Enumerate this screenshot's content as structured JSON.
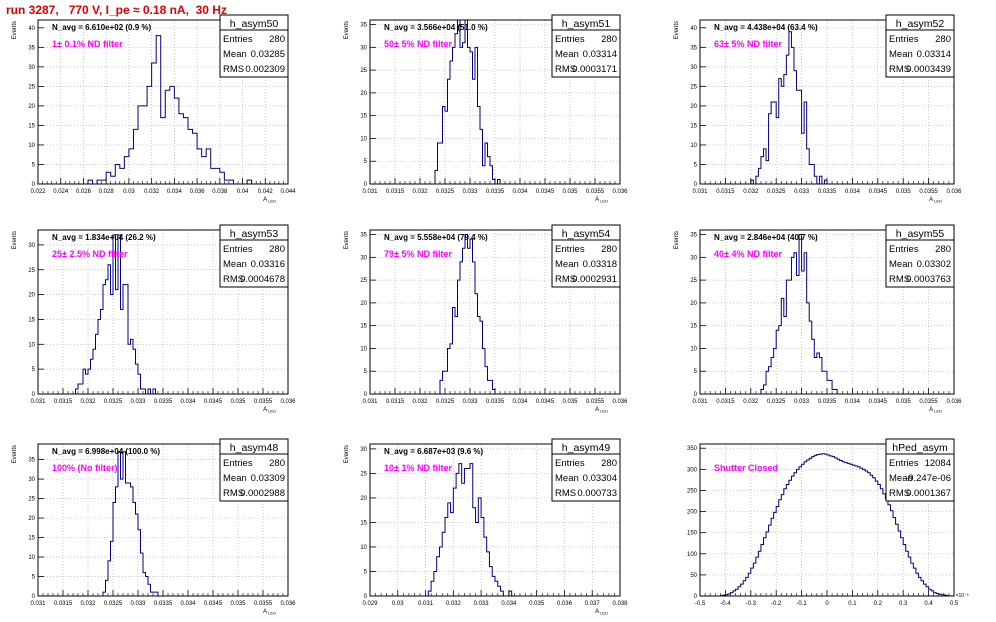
{
  "canvas_title": "run 3287,   770 V, I_pe ≈ 0.18 nA,  30 Hz",
  "colors": {
    "histogram": "#000080",
    "grid": "#b4b4b4",
    "filter_label": "#ff00ff",
    "title": "#e00000",
    "frame": "#000000"
  },
  "chart_data": [
    {
      "type": "bar",
      "name": "h_asym50",
      "nlabel": "N_avg = 6.610e+02 (0.9 %)",
      "filter": "1± 0.1% ND filter",
      "stats": [
        [
          "Entries",
          "280"
        ],
        [
          "Mean",
          "0.03285"
        ],
        [
          "RMS",
          "0.002309"
        ]
      ],
      "xlim": [
        0.022,
        0.044
      ],
      "ylim": [
        0,
        42
      ],
      "xticks": [
        "0.022",
        "0.024",
        "0.026",
        "0.028",
        "0.03",
        "0.032",
        "0.034",
        "0.036",
        "0.038",
        "0.04",
        "0.042",
        "0.044"
      ],
      "xtick_values": [
        0.022,
        0.024,
        0.026,
        0.028,
        0.03,
        0.032,
        0.034,
        0.036,
        0.038,
        0.04,
        0.042,
        0.044
      ],
      "yticks": [
        0,
        5,
        10,
        15,
        20,
        25,
        30,
        35,
        40
      ],
      "ylabel": "Events",
      "xlabel": "A_LED",
      "bins": {
        "x0": 0.0264,
        "width": 0.0004,
        "values": [
          1,
          0,
          1,
          1,
          3,
          2,
          5,
          4,
          7,
          9,
          14,
          20,
          20,
          25,
          31,
          38,
          17,
          24,
          25,
          22,
          18,
          17,
          14,
          13,
          9,
          7,
          9,
          4,
          4,
          3,
          1,
          1,
          0,
          0,
          0,
          1
        ]
      }
    },
    {
      "type": "bar",
      "name": "h_asym51",
      "nlabel": "N_avg = 3.566e+04 (51.0 %)",
      "filter": "50± 5% ND filter",
      "stats": [
        [
          "Entries",
          "280"
        ],
        [
          "Mean",
          "0.03314"
        ],
        [
          "RMS",
          "0.0003171"
        ]
      ],
      "xlim": [
        0.031,
        0.036
      ],
      "ylim": [
        0,
        36
      ],
      "xticks": [
        "0.031",
        "0.0315",
        "0.032",
        "0.0325",
        "0.033",
        "0.0335",
        "0.034",
        "0.0345",
        "0.035",
        "0.0355",
        "0.036"
      ],
      "xtick_values": [
        0.031,
        0.0315,
        0.032,
        0.0325,
        0.033,
        0.0335,
        0.034,
        0.0345,
        0.035,
        0.0355,
        0.036
      ],
      "yticks": [
        0,
        5,
        10,
        15,
        20,
        25,
        30,
        35
      ],
      "ylabel": "Events",
      "xlabel": "A_LED",
      "bins": {
        "x0": 0.0323,
        "width": 5e-05,
        "values": [
          3,
          9,
          9,
          17,
          16,
          23,
          27,
          30,
          33,
          36,
          30,
          31,
          36,
          30,
          29,
          23,
          30,
          17,
          12,
          4,
          9,
          6,
          4,
          1,
          0,
          1
        ]
      }
    },
    {
      "type": "bar",
      "name": "h_asym52",
      "nlabel": "N_avg = 4.438e+04 (63.4 %)",
      "filter": "63± 5% ND filter",
      "stats": [
        [
          "Entries",
          "280"
        ],
        [
          "Mean",
          "0.03314"
        ],
        [
          "RMS",
          "0.0003439"
        ]
      ],
      "xlim": [
        0.031,
        0.036
      ],
      "ylim": [
        0,
        42
      ],
      "xticks": [
        "0.031",
        "0.0315",
        "0.032",
        "0.0325",
        "0.033",
        "0.0335",
        "0.034",
        "0.0345",
        "0.035",
        "0.0355",
        "0.036"
      ],
      "xtick_values": [
        0.031,
        0.0315,
        0.032,
        0.0325,
        0.033,
        0.0335,
        0.034,
        0.0345,
        0.035,
        0.0355,
        0.036
      ],
      "yticks": [
        0,
        5,
        10,
        15,
        20,
        25,
        30,
        35,
        40
      ],
      "ylabel": "Events",
      "xlabel": "A_LED",
      "bins": {
        "x0": 0.032,
        "width": 5e-05,
        "values": [
          1,
          0,
          2,
          4,
          7,
          9,
          6,
          18,
          21,
          21,
          17,
          27,
          25,
          28,
          33,
          39,
          35,
          29,
          24,
          24,
          13,
          21,
          9,
          5,
          5,
          2,
          0,
          2,
          0,
          1
        ]
      }
    },
    {
      "type": "bar",
      "name": "h_asym53",
      "nlabel": "N_avg = 1.834e+04 (26.2 %)",
      "filter": "25± 2.5% ND filter",
      "stats": [
        [
          "Entries",
          "280"
        ],
        [
          "Mean",
          "0.03316"
        ],
        [
          "RMS",
          "0.0004678"
        ]
      ],
      "xlim": [
        0.031,
        0.036
      ],
      "ylim": [
        0,
        33
      ],
      "xticks": [
        "0.031",
        "0.0315",
        "0.032",
        "0.0325",
        "0.033",
        "0.0335",
        "0.034",
        "0.0345",
        "0.035",
        "0.0355",
        "0.036"
      ],
      "xtick_values": [
        0.031,
        0.0315,
        0.032,
        0.0325,
        0.033,
        0.0335,
        0.034,
        0.0345,
        0.035,
        0.0355,
        0.036
      ],
      "yticks": [
        0,
        5,
        10,
        15,
        20,
        25,
        30
      ],
      "ylabel": "Events",
      "xlabel": "A_LED",
      "bins": {
        "x0": 0.03175,
        "width": 5e-05,
        "values": [
          1,
          2,
          2,
          5,
          4,
          5,
          7,
          9,
          12,
          15,
          17,
          22,
          23,
          26,
          20,
          32,
          21,
          32,
          17,
          22,
          22,
          10,
          11,
          9,
          6,
          4,
          1,
          1,
          0,
          1,
          0,
          1
        ]
      }
    },
    {
      "type": "bar",
      "name": "h_asym54",
      "nlabel": "N_avg = 5.558e+04 (79.4 %)",
      "filter": "79± 5% ND filter",
      "stats": [
        [
          "Entries",
          "280"
        ],
        [
          "Mean",
          "0.03318"
        ],
        [
          "RMS",
          "0.0002931"
        ]
      ],
      "xlim": [
        0.031,
        0.036
      ],
      "ylim": [
        0,
        36
      ],
      "xticks": [
        "0.031",
        "0.0315",
        "0.032",
        "0.0325",
        "0.033",
        "0.0335",
        "0.034",
        "0.0345",
        "0.035",
        "0.0355",
        "0.036"
      ],
      "xtick_values": [
        0.031,
        0.0315,
        0.032,
        0.0325,
        0.033,
        0.0335,
        0.034,
        0.0345,
        0.035,
        0.0355,
        0.036
      ],
      "yticks": [
        0,
        5,
        10,
        15,
        20,
        25,
        30,
        35
      ],
      "ylabel": "Events",
      "xlabel": "A_LED",
      "bins": {
        "x0": 0.0324,
        "width": 5e-05,
        "values": [
          3,
          5,
          5,
          10,
          11,
          19,
          17,
          25,
          29,
          32,
          35,
          32,
          34,
          29,
          22,
          17,
          16,
          10,
          6,
          3,
          3,
          1
        ]
      }
    },
    {
      "type": "bar",
      "name": "h_asym55",
      "nlabel": "N_avg = 2.846e+04 (40.7 %)",
      "filter": "40± 4% ND filter",
      "stats": [
        [
          "Entries",
          "280"
        ],
        [
          "Mean",
          "0.03302"
        ],
        [
          "RMS",
          "0.0003763"
        ]
      ],
      "xlim": [
        0.031,
        0.036
      ],
      "ylim": [
        0,
        36
      ],
      "xticks": [
        "0.031",
        "0.0315",
        "0.032",
        "0.0325",
        "0.033",
        "0.0335",
        "0.034",
        "0.0345",
        "0.035",
        "0.0355",
        "0.036"
      ],
      "xtick_values": [
        0.031,
        0.0315,
        0.032,
        0.0325,
        0.033,
        0.0335,
        0.034,
        0.0345,
        0.035,
        0.0355,
        0.036
      ],
      "yticks": [
        0,
        5,
        10,
        15,
        20,
        25,
        30,
        35
      ],
      "ylabel": "Events",
      "xlabel": "A_LED",
      "bins": {
        "x0": 0.0322,
        "width": 5e-05,
        "values": [
          1,
          2,
          5,
          6,
          8,
          10,
          14,
          15,
          21,
          17,
          25,
          25,
          30,
          31,
          26,
          35,
          27,
          31,
          20,
          16,
          12,
          8,
          9,
          8,
          5,
          5,
          3,
          3,
          1,
          1
        ]
      }
    },
    {
      "type": "bar",
      "name": "h_asym48",
      "nlabel": "N_avg = 6.998e+04 (100.0 %)",
      "filter": "100% (No filter)",
      "stats": [
        [
          "Entries",
          "280"
        ],
        [
          "Mean",
          "0.03309"
        ],
        [
          "RMS",
          "0.0002988"
        ]
      ],
      "xlim": [
        0.031,
        0.036
      ],
      "ylim": [
        0,
        39
      ],
      "xticks": [
        "0.031",
        "0.0315",
        "0.032",
        "0.0325",
        "0.033",
        "0.0335",
        "0.034",
        "0.0345",
        "0.035",
        "0.0355",
        "0.036"
      ],
      "xtick_values": [
        0.031,
        0.0315,
        0.032,
        0.0325,
        0.033,
        0.0335,
        0.034,
        0.0345,
        0.035,
        0.0355,
        0.036
      ],
      "yticks": [
        0,
        5,
        10,
        15,
        20,
        25,
        30,
        35
      ],
      "ylabel": "Events",
      "xlabel": "A_LED",
      "bins": {
        "x0": 0.0323,
        "width": 5e-05,
        "values": [
          1,
          4,
          9,
          14,
          24,
          28,
          37,
          30,
          37,
          29,
          29,
          28,
          24,
          21,
          17,
          11,
          6,
          5,
          3,
          1,
          1,
          1
        ]
      }
    },
    {
      "type": "bar",
      "name": "h_asym49",
      "nlabel": "N_avg = 6.687e+03 (9.6 %)",
      "filter": "10± 1% ND filter",
      "stats": [
        [
          "Entries",
          "280"
        ],
        [
          "Mean",
          "0.03304"
        ],
        [
          "RMS",
          "0.000733"
        ]
      ],
      "xlim": [
        0.029,
        0.038
      ],
      "ylim": [
        0,
        31
      ],
      "xticks": [
        "0.029",
        "0.03",
        "0.031",
        "0.032",
        "0.033",
        "0.034",
        "0.035",
        "0.036",
        "0.037",
        "0.038"
      ],
      "xtick_values": [
        0.029,
        0.03,
        0.031,
        0.032,
        0.033,
        0.034,
        0.035,
        0.036,
        0.037,
        0.038
      ],
      "yticks": [
        0,
        5,
        10,
        15,
        20,
        25,
        30
      ],
      "ylabel": "Events",
      "xlabel": "A_LED",
      "bins": {
        "x0": 0.0311,
        "width": 0.0001,
        "values": [
          1,
          3,
          5,
          8,
          10,
          13,
          16,
          19,
          17,
          22,
          25,
          27,
          23,
          26,
          26,
          27,
          18,
          15,
          20,
          16,
          12,
          9,
          6,
          4,
          3,
          2,
          1,
          0,
          0,
          1
        ]
      }
    },
    {
      "type": "bar",
      "name": "hPed_asym",
      "nlabel": "",
      "filter": "Shutter Closed",
      "stats": [
        [
          "Entries",
          "12084"
        ],
        [
          "Mean",
          "-9.247e-06"
        ],
        [
          "RMS",
          "0.0001367"
        ]
      ],
      "xlim": [
        -0.5,
        0.5
      ],
      "ylim": [
        0,
        360
      ],
      "xticks": [
        "-0.5",
        "-0.4",
        "-0.3",
        "-0.2",
        "-0.1",
        "0",
        "0.1",
        "0.2",
        "0.3",
        "0.4",
        "0.5"
      ],
      "xtick_values": [
        -0.5,
        -0.4,
        -0.3,
        -0.2,
        -0.1,
        0,
        0.1,
        0.2,
        0.3,
        0.4,
        0.5
      ],
      "yticks": [
        0,
        50,
        100,
        150,
        200,
        250,
        300,
        350
      ],
      "ylabel": "",
      "xlabel": "",
      "exponent": "×10⁻³",
      "bins": {
        "x0": -0.42,
        "width": 0.01,
        "values": [
          1,
          2,
          3,
          5,
          8,
          12,
          16,
          22,
          28,
          36,
          44,
          54,
          66,
          78,
          92,
          106,
          122,
          138,
          152,
          168,
          184,
          198,
          212,
          228,
          240,
          254,
          264,
          274,
          284,
          292,
          300,
          306,
          312,
          318,
          322,
          326,
          330,
          333,
          335,
          336,
          337,
          336,
          334,
          332,
          330,
          327,
          324,
          321,
          318,
          316,
          314,
          312,
          310,
          308,
          306,
          303,
          300,
          296,
          292,
          286,
          280,
          272,
          264,
          254,
          242,
          230,
          216,
          202,
          186,
          170,
          154,
          138,
          122,
          106,
          92,
          78,
          66,
          54,
          44,
          36,
          28,
          22,
          16,
          12,
          8,
          6,
          4,
          3,
          2,
          1
        ]
      }
    }
  ]
}
